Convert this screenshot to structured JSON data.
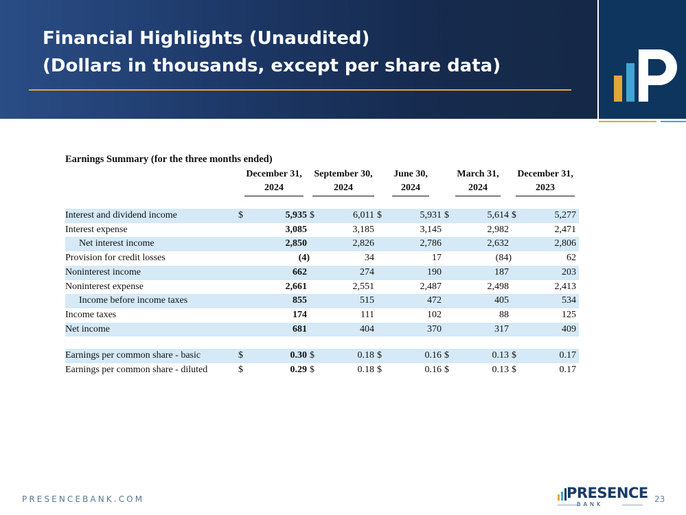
{
  "header": {
    "title_line1": "Financial Highlights (Unaudited)",
    "title_line2": "(Dollars in thousands, except per share data)"
  },
  "table": {
    "caption": "Earnings Summary (for the three months ended)",
    "columns": [
      {
        "line1": "December 31,",
        "line2": "2024"
      },
      {
        "line1": "September 30,",
        "line2": "2024"
      },
      {
        "line1": "June 30,",
        "line2": "2024"
      },
      {
        "line1": "March 31,",
        "line2": "2024"
      },
      {
        "line1": "December 31,",
        "line2": "2023"
      }
    ],
    "rows": [
      {
        "label": "Interest and dividend income",
        "currency": "$",
        "values": [
          "5,935",
          "6,011",
          "5,931",
          "5,614",
          "5,277"
        ],
        "shaded": true
      },
      {
        "label": "Interest expense",
        "currency": "",
        "values": [
          "3,085",
          "3,185",
          "3,145",
          "2,982",
          "2,471"
        ],
        "shaded": false
      },
      {
        "label": "Net interest income",
        "currency": "",
        "values": [
          "2,850",
          "2,826",
          "2,786",
          "2,632",
          "2,806"
        ],
        "shaded": true,
        "indent": true
      },
      {
        "label": "Provision for credit losses",
        "currency": "",
        "values": [
          "(4)",
          "34",
          "17",
          "(84)",
          "62"
        ],
        "shaded": false
      },
      {
        "label": "Noninterest income",
        "currency": "",
        "values": [
          "662",
          "274",
          "190",
          "187",
          "203"
        ],
        "shaded": true
      },
      {
        "label": "Noninterest expense",
        "currency": "",
        "values": [
          "2,661",
          "2,551",
          "2,487",
          "2,498",
          "2,413"
        ],
        "shaded": false
      },
      {
        "label": "Income before income taxes",
        "currency": "",
        "values": [
          "855",
          "515",
          "472",
          "405",
          "534"
        ],
        "shaded": true,
        "indent": true
      },
      {
        "label": "Income taxes",
        "currency": "",
        "values": [
          "174",
          "111",
          "102",
          "88",
          "125"
        ],
        "shaded": false
      },
      {
        "label": "Net income",
        "currency": "",
        "values": [
          "681",
          "404",
          "370",
          "317",
          "409"
        ],
        "shaded": true
      },
      {
        "label": "Earnings per common share - basic",
        "currency": "$",
        "values": [
          "0.30",
          "0.18",
          "0.16",
          "0.13",
          "0.17"
        ],
        "shaded": true
      },
      {
        "label": "Earnings per common share - diluted",
        "currency": "$",
        "values": [
          "0.29",
          "0.18",
          "0.16",
          "0.13",
          "0.17"
        ],
        "shaded": false
      }
    ]
  },
  "footer": {
    "url": "PRESENCEBANK.COM",
    "logo_word": "PRESENCE",
    "logo_sub": "BANK",
    "page_number": "23"
  },
  "colors": {
    "header_dark": "#162b4f",
    "header_light": "#2a4d86",
    "accent_gold": "#e3a63a",
    "accent_blue": "#3fa6d4",
    "row_shade": "#d5e9f7",
    "logo_box": "#0e355d"
  },
  "icons": {
    "header_logo": "presence-bank-p-mark-icon",
    "footer_logo": "presence-bars-icon"
  }
}
